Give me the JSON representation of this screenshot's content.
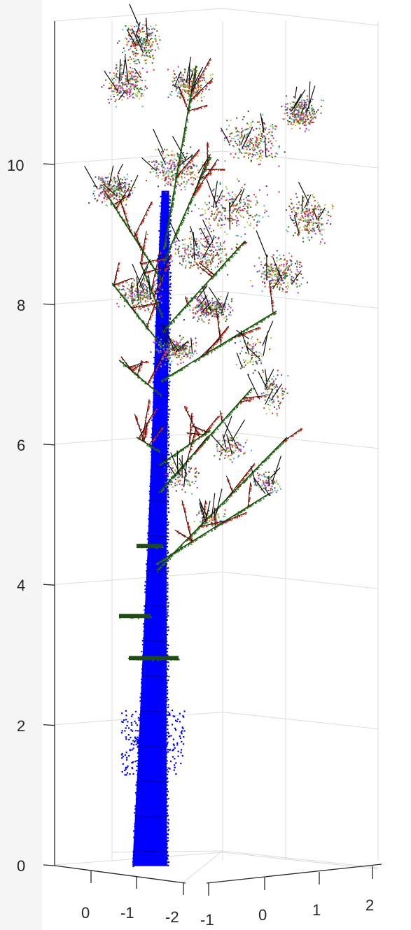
{
  "chart_data": {
    "type": "scatter",
    "title": "",
    "view": "3D point cloud of a tree with fitted cylinders (QSM)",
    "z_axis": {
      "label": "",
      "ticks": [
        "0",
        "2",
        "4",
        "6",
        "8",
        "10"
      ],
      "range": [
        0,
        12
      ]
    },
    "x_axis": {
      "label": "",
      "ticks": [
        "0",
        "-1",
        "-2"
      ],
      "range": [
        -2.5,
        0.6
      ]
    },
    "y_axis": {
      "label": "",
      "ticks": [
        "-1",
        "0",
        "1",
        "2"
      ],
      "range": [
        -1.1,
        2.5
      ]
    },
    "grid": true,
    "legend": "none",
    "series_colors": {
      "trunk": "#0000ff",
      "first_order_branches": "#2e7d1e",
      "second_order_branches": "#e8331c",
      "third_order_branches": "#55b8bf",
      "fourth_order_branches": "#a833c8",
      "fifth_order_branches": "#c4c430",
      "higher_order_branches": "#444444",
      "cylinders": "#111111"
    },
    "trunk_profile": [
      {
        "z": 0.0,
        "diameter": 0.55
      },
      {
        "z": 1.5,
        "diameter": 0.45
      },
      {
        "z": 3.0,
        "diameter": 0.38
      },
      {
        "z": 4.5,
        "diameter": 0.3
      },
      {
        "z": 6.0,
        "diameter": 0.25
      },
      {
        "z": 8.0,
        "diameter": 0.2
      },
      {
        "z": 9.5,
        "diameter": 0.12
      }
    ],
    "crown_base_height": 4.2,
    "tree_height": 11.9
  }
}
